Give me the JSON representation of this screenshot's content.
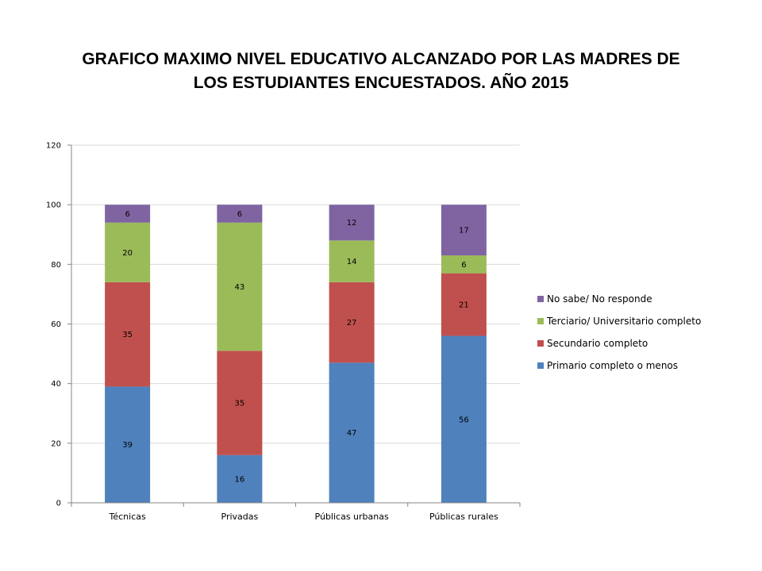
{
  "title_lines": [
    "GRAFICO  MAXIMO NIVEL EDUCATIVO ALCANZADO POR LAS MADRES DE",
    "LOS ESTUDIANTES ENCUESTADOS. AÑO 2015"
  ],
  "chart_data": {
    "type": "bar",
    "stacked": true,
    "title": "GRAFICO  MAXIMO NIVEL EDUCATIVO ALCANZADO POR LAS MADRES DE LOS ESTUDIANTES ENCUESTADOS. AÑO 2015",
    "categories": [
      "Técnicas",
      "Privadas",
      "Públicas urbanas",
      "Públicas rurales"
    ],
    "series": [
      {
        "name": "Primario completo o menos",
        "color": "#4F81BD",
        "values": [
          39,
          16,
          47,
          56
        ]
      },
      {
        "name": "Secundario completo",
        "color": "#C0504D",
        "values": [
          35,
          35,
          27,
          21
        ]
      },
      {
        "name": "Terciario/ Universitario completo",
        "color": "#9BBB59",
        "values": [
          20,
          43,
          14,
          6
        ]
      },
      {
        "name": "No sabe/ No responde",
        "color": "#8064A2",
        "values": [
          6,
          6,
          12,
          17
        ]
      }
    ],
    "ylim": [
      0,
      120
    ],
    "yticks": [
      0,
      20,
      40,
      60,
      80,
      100,
      120
    ],
    "grid": true,
    "legend_position": "right",
    "data_labels": true
  }
}
